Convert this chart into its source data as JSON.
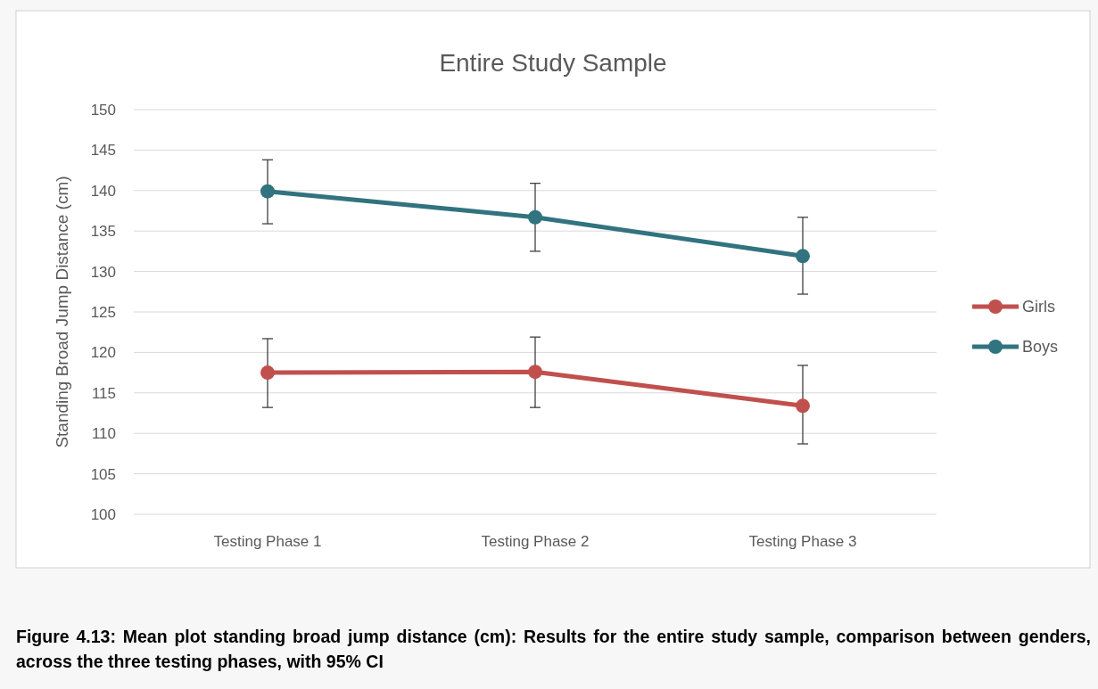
{
  "chart_data": {
    "type": "line",
    "title": "Entire Study Sample",
    "ylabel": "Standing Broad Jump Distance (cm)",
    "categories": [
      "Testing Phase 1",
      "Testing Phase 2",
      "Testing Phase 3"
    ],
    "series": [
      {
        "name": "Girls",
        "color": "#c0504d",
        "values": [
          117.5,
          117.6,
          113.4
        ],
        "errors": [
          [
            113.2,
            121.7
          ],
          [
            113.2,
            121.9
          ],
          [
            108.7,
            118.4
          ]
        ]
      },
      {
        "name": "Boys",
        "color": "#31737f",
        "values": [
          139.9,
          136.7,
          131.9
        ],
        "errors": [
          [
            135.9,
            143.8
          ],
          [
            132.5,
            140.9
          ],
          [
            127.2,
            136.7
          ]
        ]
      }
    ],
    "ylim": [
      100,
      150
    ],
    "yticks": [
      100,
      105,
      110,
      115,
      120,
      125,
      130,
      135,
      140,
      145,
      150
    ],
    "grid": "y",
    "legend": "right",
    "marker": "circle",
    "line_style": "solid",
    "annotations": [
      "Figure 4.13: Mean plot standing broad jump distance (cm): Results for the entire study sample, comparison between genders, across the three testing phases, with 95% CI"
    ]
  }
}
